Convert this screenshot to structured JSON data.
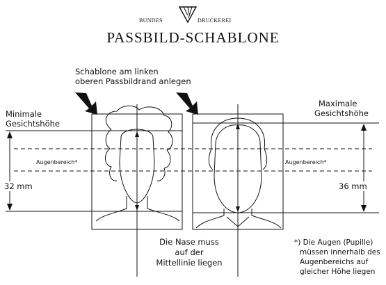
{
  "header": {
    "brand_left": "BUNDES",
    "brand_right": "DRUCKEREI",
    "title": "PASSBILD-SCHABLONE"
  },
  "instructions": {
    "top_line1": "Schablone am linken",
    "top_line2": "oberen Passbildrand anlegen",
    "nose_line1": "Die Nase muss",
    "nose_line2": "auf der",
    "nose_line3": "Mittellinie liegen",
    "footnote_line1": "*) Die Augen (Pupille)",
    "footnote_line2": "müssen innerhalb des",
    "footnote_line3": "Augenbereichs auf",
    "footnote_line4": "gleicher Höhe liegen"
  },
  "left_panel": {
    "label_line1": "Minimale",
    "label_line2": "Gesichtshöhe",
    "eye_area_label": "Augenbereich*",
    "height_value": "32 mm"
  },
  "right_panel": {
    "label_line1": "Maximale",
    "label_line2": "Gesichtshöhe",
    "eye_area_label": "Augenbereich*",
    "height_value": "36 mm"
  },
  "icons": {
    "logo": "eagle-logo-icon",
    "pointer_arrows": "pointer-arrow-icon"
  }
}
